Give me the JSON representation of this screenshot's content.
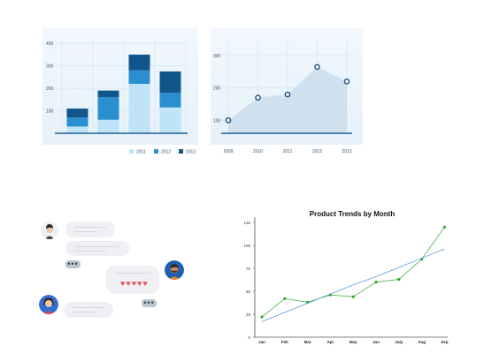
{
  "chart_data": [
    {
      "type": "bar",
      "stacked": true,
      "categories": [
        "",
        "",
        "",
        ""
      ],
      "series": [
        {
          "name": "2011",
          "color": "#bfe3f7",
          "values": [
            30,
            60,
            220,
            115
          ]
        },
        {
          "name": "2012",
          "color": "#2a8fcf",
          "values": [
            40,
            100,
            60,
            65
          ]
        },
        {
          "name": "2013",
          "color": "#11568b",
          "values": [
            40,
            30,
            70,
            95
          ]
        }
      ],
      "y_ticks": [
        "100",
        "200",
        "300",
        "400"
      ],
      "ylim": [
        0,
        420
      ],
      "legend": [
        "2011",
        "2012",
        "2013"
      ],
      "legend_placement": "bottom-right",
      "grid": true
    },
    {
      "type": "area",
      "x": [
        "2009",
        "2010",
        "2011",
        "2012",
        "2013"
      ],
      "values": [
        100,
        170,
        180,
        265,
        220
      ],
      "y_ticks": [
        "100",
        "200",
        "300"
      ],
      "ylim": [
        60,
        330
      ],
      "color": "#0f4c81",
      "grid": true
    },
    {
      "type": "line",
      "title": "Product Trends by Month",
      "x": [
        "Jan",
        "Feb",
        "Mar",
        "Apr",
        "May",
        "Jun",
        "July",
        "Aug",
        "Sep"
      ],
      "series": [
        {
          "color": "#2ea82e",
          "values": [
            22,
            42,
            38,
            46,
            44,
            60,
            63,
            85,
            120
          ]
        },
        {
          "color": "#5b9bd5",
          "trend": true,
          "values": [
            17,
            27,
            37,
            47,
            57,
            66,
            76,
            86,
            96
          ]
        }
      ],
      "y_ticks": [
        "0",
        "25",
        "50",
        "75",
        "100",
        "125"
      ],
      "ylim": [
        0,
        125
      ],
      "grid": false
    }
  ],
  "chat": {
    "chip_dots": "•••",
    "hearts": "♥♥♥♥♥"
  }
}
